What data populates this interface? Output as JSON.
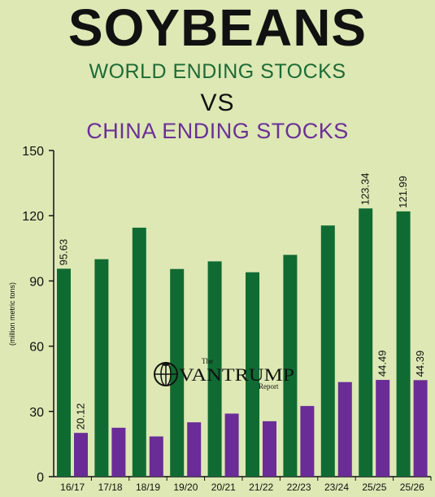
{
  "title": "SOYBEANS",
  "subtitle_line1": "WORLD ENDING STOCKS",
  "subtitle_line2": "VS",
  "subtitle_line3": "CHINA ENDING STOCKS",
  "logo": {
    "the": "The",
    "name": "VANTRUMP",
    "report": "Report"
  },
  "colors": {
    "world": "#0f6b32",
    "china": "#6a2c97",
    "background": "#dde8b4"
  },
  "chart_data": {
    "type": "bar",
    "categories": [
      "16/17",
      "17/18",
      "18/19",
      "19/20",
      "20/21",
      "21/22",
      "22/23",
      "23/24",
      "25/25",
      "25/26"
    ],
    "series": [
      {
        "values": [
          95.63,
          100,
          114.5,
          95.5,
          99,
          94,
          102,
          115.5,
          123.34,
          121.99
        ],
        "color": "#0f6b32"
      },
      {
        "values": [
          20.12,
          22.5,
          18.5,
          25,
          29,
          25.5,
          32.5,
          43.5,
          44.49,
          44.39
        ],
        "color": "#6a2c97"
      }
    ],
    "data_labels": [
      {
        "series": 0,
        "index": 0,
        "text": "95.63"
      },
      {
        "series": 1,
        "index": 0,
        "text": "20.12"
      },
      {
        "series": 0,
        "index": 8,
        "text": "123.34"
      },
      {
        "series": 1,
        "index": 8,
        "text": "44.49"
      },
      {
        "series": 0,
        "index": 9,
        "text": "121.99"
      },
      {
        "series": 1,
        "index": 9,
        "text": "44.39"
      }
    ],
    "ylabel": "(million metric tons)",
    "yticks": [
      "0",
      "30",
      "60",
      "90",
      "120",
      "150"
    ],
    "ylim": [
      0,
      150
    ],
    "grid": false,
    "legend": "none"
  }
}
